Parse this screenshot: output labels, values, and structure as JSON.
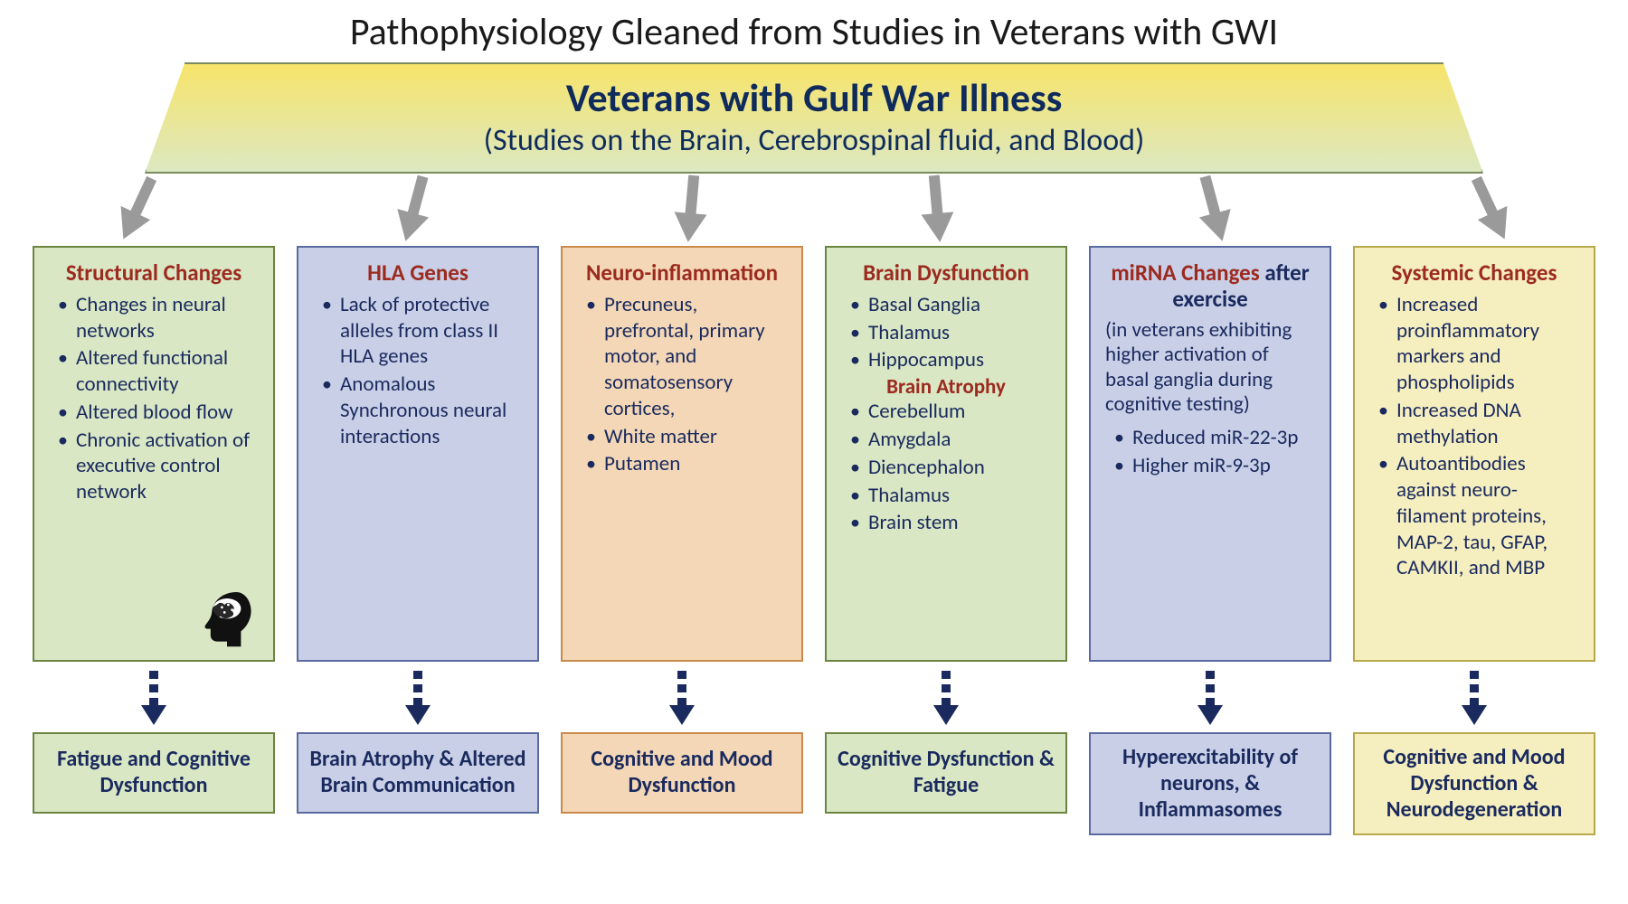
{
  "title": "Pathophysiology Gleaned from Studies in Veterans with GWI",
  "header": {
    "title": "Veterans with Gulf War Illness",
    "subtitle": "(Studies on the Brain, Cerebrospinal fluid, and Blood)",
    "bg_gradient_top": "#f7e46a",
    "bg_gradient_bottom": "#dce8c1",
    "border_color": "#7a8a5c",
    "title_color": "#0f2b5b",
    "subtitle_color": "#0f2b5b"
  },
  "colors": {
    "title_red": "#9c2a1f",
    "text_navy": "#1a2a5e",
    "gray_arrow": "#9a9a9a",
    "dashed_arrow": "#1a2a5e",
    "box_green_bg": "#d9e7c4",
    "box_green_border": "#6b8540",
    "box_blue_bg": "#c9cfe6",
    "box_blue_border": "#5a6aa0",
    "box_orange_bg": "#f3d7b6",
    "box_orange_border": "#c98a4a",
    "box_yellow_bg": "#f5eebf",
    "box_yellow_border": "#b8a84a"
  },
  "typography": {
    "main_title_size": 42,
    "header_title_size": 44,
    "header_subtitle_size": 34,
    "box_title_size": 25,
    "body_size": 23,
    "outcome_size": 24
  },
  "arrows": {
    "gray_positions_pct": [
      6,
      24,
      42,
      58,
      76,
      94
    ],
    "gray_rotations_deg": [
      25,
      15,
      5,
      -5,
      -15,
      -25
    ]
  },
  "columns": [
    {
      "color_scheme": "green",
      "title": "Structural Changes",
      "bullets": [
        "Changes in neural networks",
        "Altered functional connectivity",
        "Altered blood flow",
        "Chronic activation of executive control network"
      ],
      "has_brain_icon": true,
      "outcome": "Fatigue and Cognitive Dysfunction"
    },
    {
      "color_scheme": "blue",
      "title": "HLA Genes",
      "bullets": [
        "Lack of protective alleles from class II HLA genes",
        "Anomalous Synchronous neural interactions"
      ],
      "outcome": "Brain Atrophy & Altered Brain Communication"
    },
    {
      "color_scheme": "orange",
      "title": "Neuro-inflammation",
      "bullets": [
        "Precuneus, prefrontal, primary motor, and somatosensory cortices,",
        "White matter",
        "Putamen"
      ],
      "outcome": "Cognitive and Mood Dysfunction"
    },
    {
      "color_scheme": "green",
      "title": "Brain Dysfunction",
      "bullets": [
        "Basal Ganglia",
        "Thalamus",
        "Hippocampus"
      ],
      "second_title": "Brain Atrophy",
      "second_bullets": [
        "Cerebellum",
        "Amygdala",
        "Diencephalon",
        "Thalamus",
        "Brain stem"
      ],
      "outcome": "Cognitive Dysfunction & Fatigue"
    },
    {
      "color_scheme": "blue",
      "title": "miRNA Changes",
      "title_inline_extra": "after exercise",
      "extra_text": "(in veterans exhibiting higher activation of basal ganglia during cognitive testing)",
      "bullets": [
        "Reduced miR-22-3p",
        "Higher miR-9-3p"
      ],
      "outcome": "Hyperexcitability of neurons, & Inflammasomes"
    },
    {
      "color_scheme": "yellow",
      "title": "Systemic Changes",
      "bullets": [
        "Increased proinflammatory markers and phospholipids",
        "Increased DNA methylation",
        "Autoantibodies against neuro-filament proteins, MAP-2, tau, GFAP, CAMKII, and MBP"
      ],
      "outcome": "Cognitive and Mood Dysfunction & Neurodegeneration"
    }
  ]
}
